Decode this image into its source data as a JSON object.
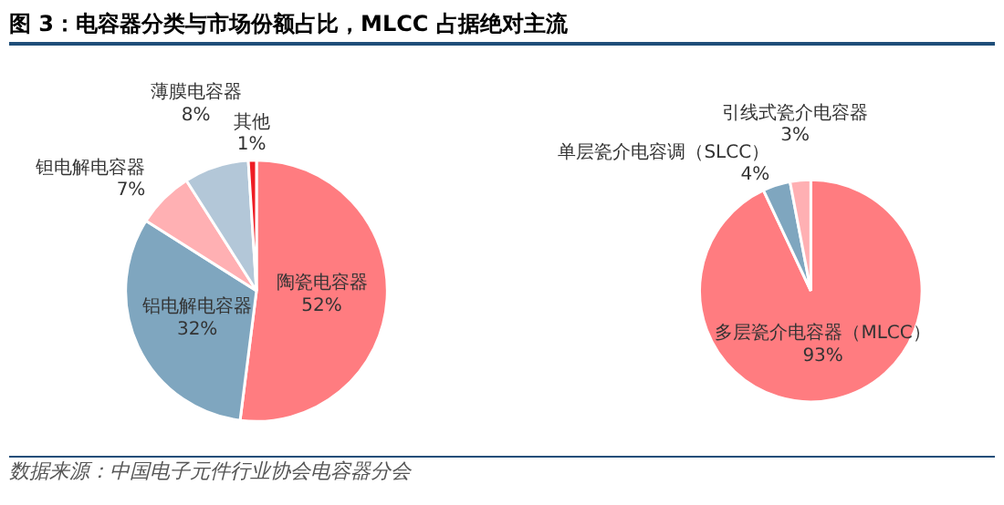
{
  "chart_data": [
    {
      "type": "pie",
      "title": "图 3：电容器分类与市场份额占比，MLCC 占据绝对主流",
      "annotations": [
        "数据来源：中国电子元件行业协会电容器分会"
      ],
      "categories": [
        "陶瓷电容器",
        "铝电解电容器",
        "钽电解电容器",
        "薄膜电容器",
        "其他"
      ],
      "values": [
        52,
        32,
        7,
        8,
        1
      ],
      "value_labels": [
        "52%",
        "32%",
        "7%",
        "8%",
        "1%"
      ],
      "colors": [
        "#ff7c80",
        "#7fa6bf",
        "#ffb0b3",
        "#b3c7d8",
        "#ee1c24"
      ]
    },
    {
      "type": "pie",
      "categories": [
        "多层瓷介电容器（MLCC）",
        "单层瓷介电容调（SLCC）",
        "引线式瓷介电容器"
      ],
      "values": [
        93,
        4,
        3
      ],
      "value_labels": [
        "93%",
        "4%",
        "3%"
      ],
      "colors": [
        "#ff7c80",
        "#7fa6bf",
        "#ffb0b3"
      ]
    }
  ]
}
